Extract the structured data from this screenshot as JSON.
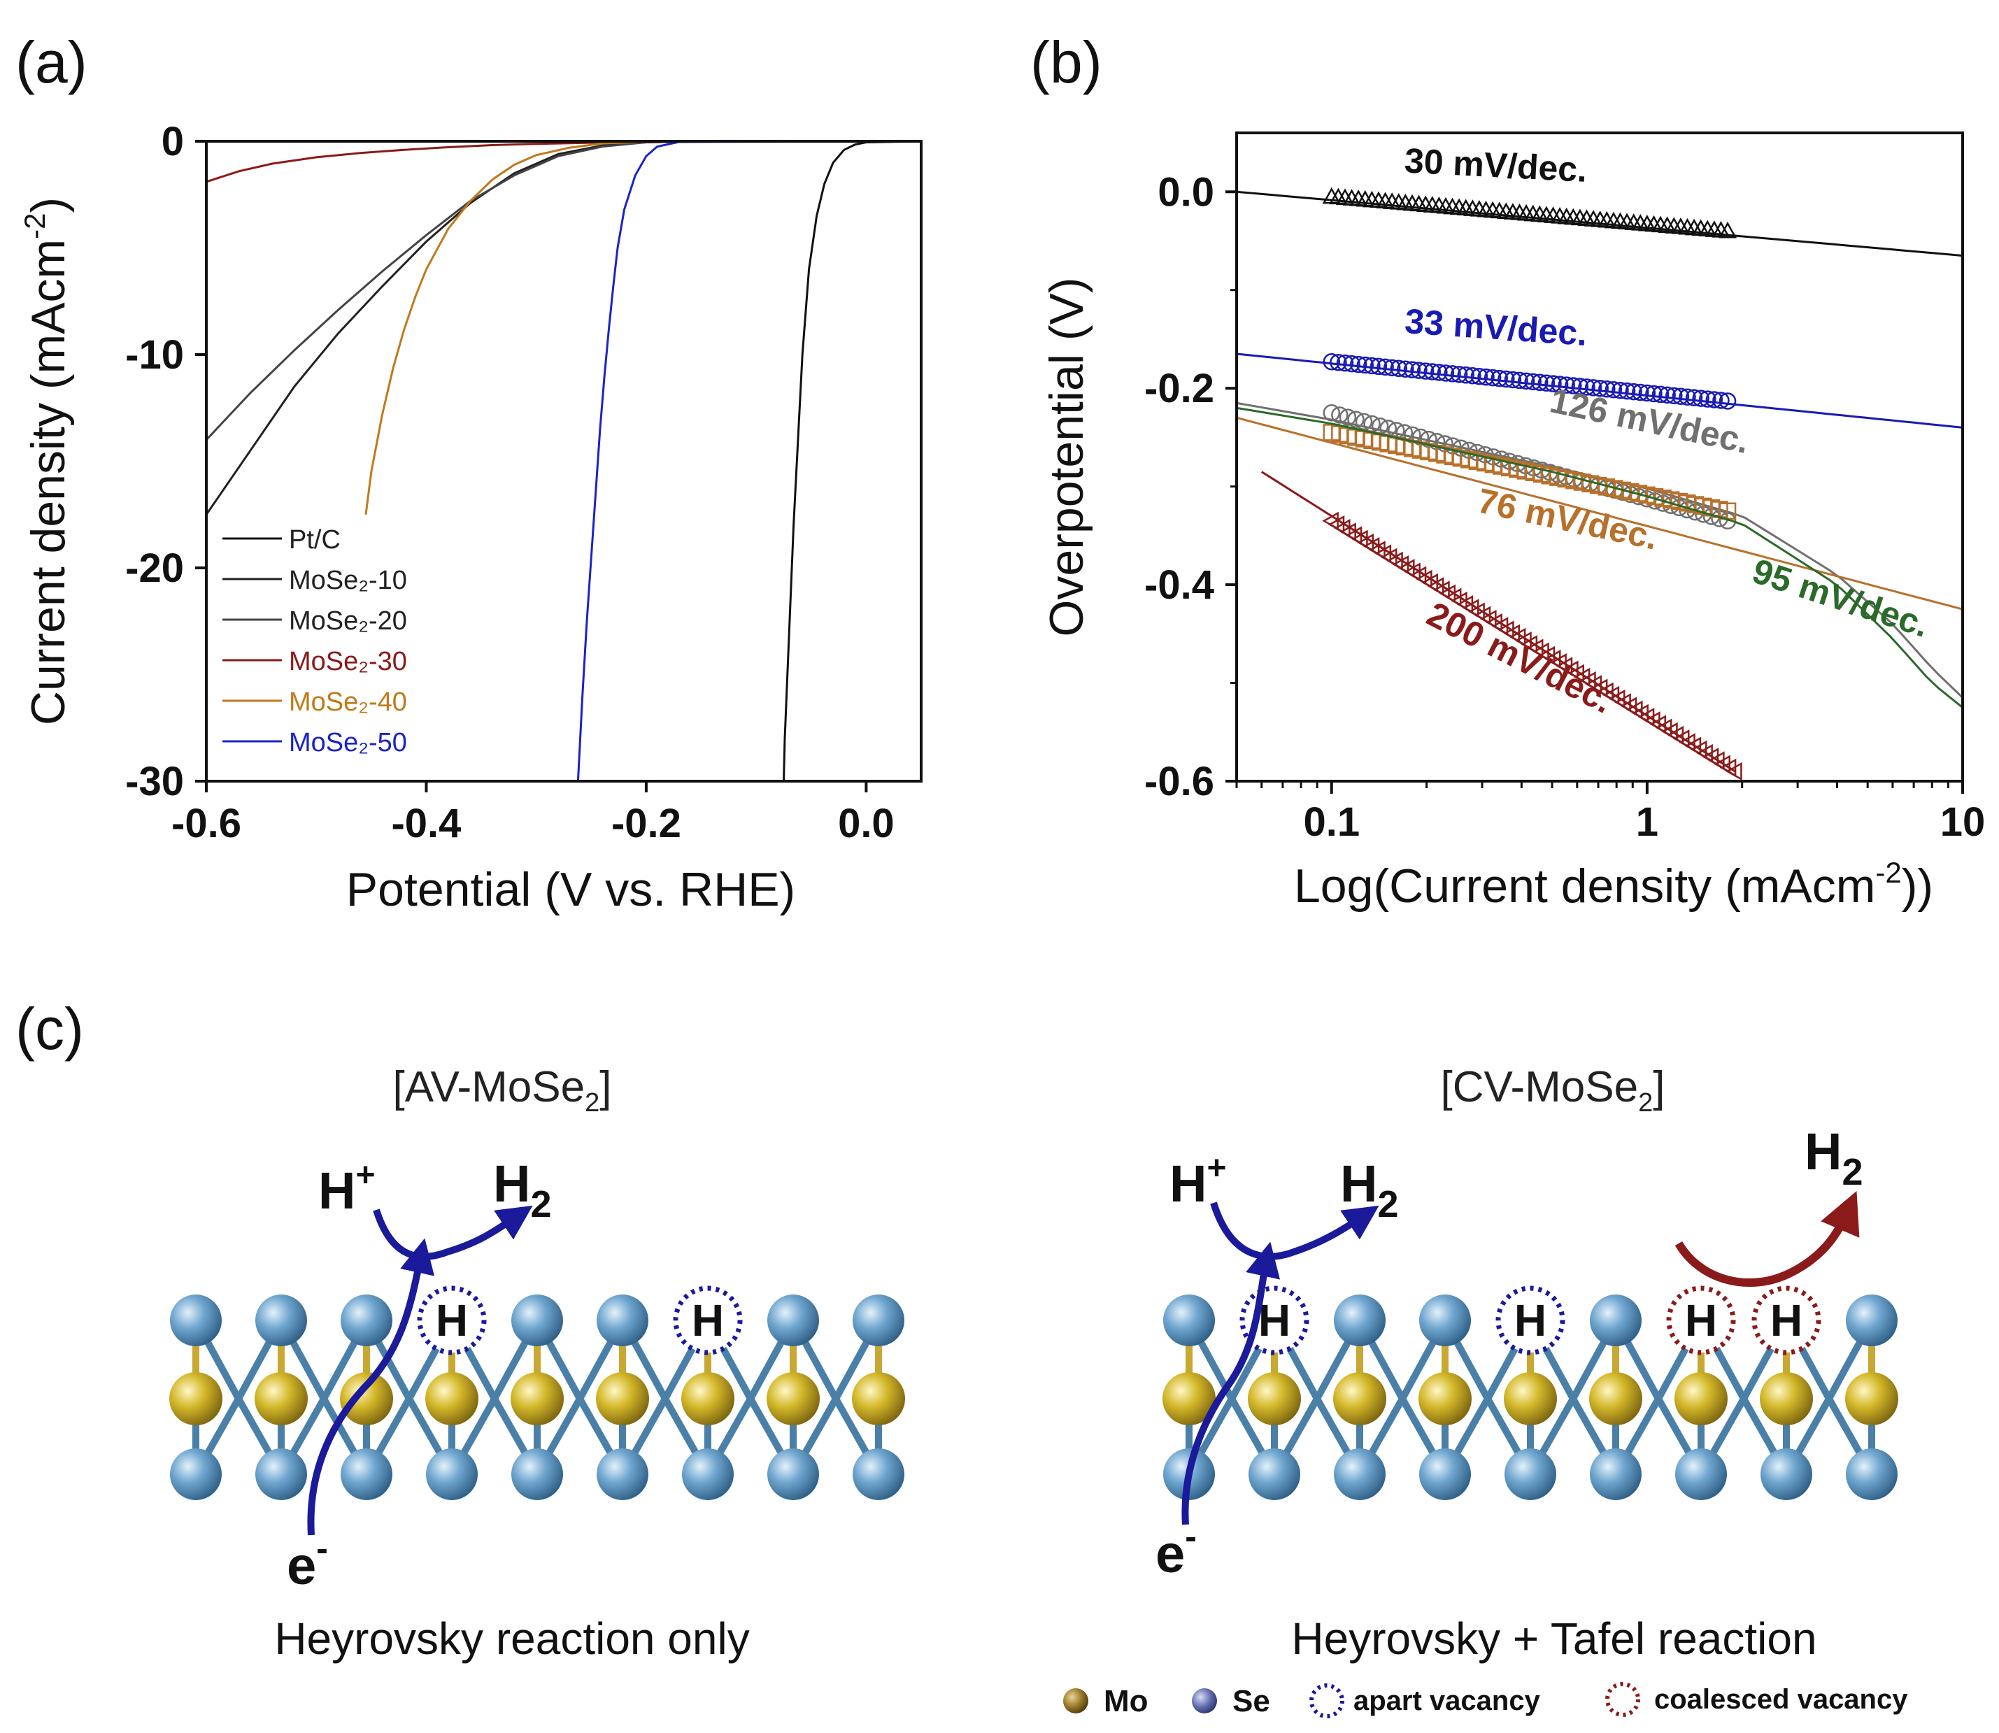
{
  "panel_labels": {
    "a": "(a)",
    "b": "(b)",
    "c": "(c)"
  },
  "colors": {
    "black": "#111111",
    "mose2_10": "#222222",
    "mose2_20": "#444444",
    "mose2_30": "#8b1a1a",
    "mose2_40": "#c07a1a",
    "mose2_50": "#1a23c8",
    "tafel_33": "#1a1ab4",
    "tafel_126": "#707070",
    "tafel_76": "#b8702a",
    "tafel_95": "#2a6a2a",
    "tafel_200": "#8b1a1a",
    "se": "#6fa6cf",
    "mo": "#d4b82a",
    "bond_mo": "#c8a832",
    "bond_se": "#4a7fa8",
    "apart": "#1a1a9a",
    "coalesced": "#8b1a1a"
  },
  "chart_data": [
    {
      "id": "a",
      "type": "line",
      "title": "",
      "xlabel": "Potential (V vs. RHE)",
      "ylabel_main": "Current density (mAcm",
      "ylabel_sup": "-2",
      "ylabel_close": ")",
      "xlim": [
        -0.6,
        0.05
      ],
      "ylim": [
        -30,
        0
      ],
      "xticks": [
        -0.6,
        -0.4,
        -0.2,
        0.0
      ],
      "xtick_labels": [
        "-0.6",
        "-0.4",
        "-0.2",
        "0.0"
      ],
      "yticks": [
        0,
        -10,
        -20,
        -30
      ],
      "ytick_labels": [
        "0",
        "-10",
        "-20",
        "-30"
      ],
      "legend_position": "bottom-left",
      "series": [
        {
          "name": "Pt/C",
          "color_key": "black",
          "x": [
            -0.075,
            -0.074,
            -0.07,
            -0.066,
            -0.062,
            -0.058,
            -0.052,
            -0.045,
            -0.038,
            -0.03,
            -0.02,
            -0.01,
            0.0,
            0.05
          ],
          "y": [
            -30,
            -28,
            -23,
            -18,
            -14,
            -10,
            -6,
            -3.5,
            -2,
            -1,
            -0.4,
            -0.15,
            -0.05,
            0
          ]
        },
        {
          "name": "MoSe2-10",
          "color_key": "mose2_10",
          "x": [
            -0.6,
            -0.56,
            -0.52,
            -0.48,
            -0.44,
            -0.4,
            -0.36,
            -0.32,
            -0.28,
            -0.24,
            -0.2,
            -0.15,
            0.05
          ],
          "y": [
            -17.5,
            -14.5,
            -11.5,
            -9,
            -6.8,
            -4.7,
            -2.9,
            -1.5,
            -0.6,
            -0.2,
            -0.05,
            0,
            0
          ]
        },
        {
          "name": "MoSe2-20",
          "color_key": "mose2_20",
          "x": [
            -0.6,
            -0.56,
            -0.52,
            -0.48,
            -0.44,
            -0.4,
            -0.36,
            -0.32,
            -0.28,
            -0.24,
            -0.2,
            -0.15,
            0.05
          ],
          "y": [
            -14,
            -11.8,
            -9.8,
            -7.9,
            -6.1,
            -4.4,
            -2.8,
            -1.6,
            -0.7,
            -0.25,
            -0.05,
            0,
            0
          ]
        },
        {
          "name": "MoSe2-30",
          "color_key": "mose2_30",
          "x": [
            -0.6,
            -0.57,
            -0.54,
            -0.5,
            -0.46,
            -0.42,
            -0.38,
            -0.34,
            -0.3,
            -0.25,
            -0.2,
            -0.1,
            0.05
          ],
          "y": [
            -1.9,
            -1.4,
            -1.05,
            -0.75,
            -0.55,
            -0.4,
            -0.28,
            -0.18,
            -0.12,
            -0.07,
            -0.03,
            -0.01,
            0
          ]
        },
        {
          "name": "MoSe2-40",
          "color_key": "mose2_40",
          "x": [
            -0.455,
            -0.45,
            -0.44,
            -0.43,
            -0.42,
            -0.41,
            -0.4,
            -0.38,
            -0.36,
            -0.34,
            -0.32,
            -0.3,
            -0.27,
            -0.24,
            -0.2,
            0.05
          ],
          "y": [
            -17.5,
            -15.5,
            -12.8,
            -10.6,
            -8.8,
            -7.3,
            -6.0,
            -4.1,
            -2.8,
            -1.8,
            -1.1,
            -0.65,
            -0.3,
            -0.1,
            -0.02,
            0
          ]
        },
        {
          "name": "MoSe2-50",
          "color_key": "mose2_50",
          "x": [
            -0.262,
            -0.258,
            -0.254,
            -0.25,
            -0.246,
            -0.242,
            -0.238,
            -0.234,
            -0.23,
            -0.226,
            -0.22,
            -0.21,
            -0.2,
            -0.19,
            -0.17,
            0.05
          ],
          "y": [
            -30,
            -26,
            -22.5,
            -19.5,
            -16.5,
            -13.5,
            -11,
            -8.8,
            -6.8,
            -5.0,
            -3.2,
            -1.6,
            -0.7,
            -0.25,
            -0.03,
            0
          ]
        }
      ],
      "legend_entries": [
        {
          "label": "Pt/C",
          "color_key": "black"
        },
        {
          "label": "MoSe₂-10",
          "color_key": "mose2_10"
        },
        {
          "label": "MoSe₂-20",
          "color_key": "mose2_20"
        },
        {
          "label": "MoSe₂-30",
          "color_key": "mose2_30"
        },
        {
          "label": "MoSe₂-40",
          "color_key": "mose2_40"
        },
        {
          "label": "MoSe₂-50",
          "color_key": "mose2_50"
        }
      ]
    },
    {
      "id": "b",
      "type": "scatter",
      "title": "",
      "xlabel_main": "Log(Current density (mAcm",
      "xlabel_sup": "-2",
      "xlabel_close": "))",
      "ylabel": "Overpotential (V)",
      "xscale": "log",
      "xlim": [
        0.05,
        10
      ],
      "ylim": [
        -0.6,
        0.06
      ],
      "xticks": [
        0.1,
        1,
        10
      ],
      "xtick_labels": [
        "0.1",
        "1",
        "10"
      ],
      "yticks": [
        0.0,
        -0.2,
        -0.4,
        -0.6
      ],
      "ytick_labels": [
        "0.0",
        "-0.2",
        "-0.4",
        "-0.6"
      ],
      "series": [
        {
          "name": "30 mV/dec.",
          "marker": "triangle-up",
          "color_key": "black",
          "points": {
            "x_start": 0.1,
            "x_end": 1.8,
            "y_start": -0.005,
            "y_end": -0.04,
            "count": 60
          },
          "fit": {
            "x": [
              0.05,
              10
            ],
            "y": [
              0.0,
              -0.065
            ]
          }
        },
        {
          "name": "33 mV/dec.",
          "marker": "circle",
          "color_key": "tafel_33",
          "points": {
            "x_start": 0.1,
            "x_end": 1.8,
            "y_start": -0.173,
            "y_end": -0.213,
            "count": 60
          },
          "fit": {
            "x": [
              0.05,
              10
            ],
            "y": [
              -0.165,
              -0.24
            ]
          }
        },
        {
          "name": "126 mV/dec.",
          "marker": "circle",
          "color_key": "tafel_126",
          "points": {
            "x_start": 0.1,
            "x_end": 1.8,
            "y_start": -0.225,
            "y_end": -0.335,
            "count": 50
          },
          "fit": {
            "x": [
              0.05,
              0.1,
              0.5,
              1.0,
              2.0,
              4.0,
              6.0,
              8.0,
              10
            ],
            "y": [
              -0.215,
              -0.232,
              -0.28,
              -0.302,
              -0.33,
              -0.39,
              -0.44,
              -0.485,
              -0.515
            ]
          }
        },
        {
          "name": "76 mV/dec.",
          "marker": "square",
          "color_key": "tafel_76",
          "points": {
            "x_start": 0.1,
            "x_end": 1.8,
            "y_start": -0.245,
            "y_end": -0.325,
            "count": 50
          },
          "fit": {
            "x": [
              0.05,
              10
            ],
            "y": [
              -0.23,
              -0.425
            ]
          }
        },
        {
          "name": "95 mV/dec.",
          "marker": "square",
          "color_key": "tafel_95",
          "points": {
            "x_start": 0.1,
            "x_end": 1.8,
            "y_start": -0.24,
            "y_end": -0.33,
            "count": 0
          },
          "fit": {
            "x": [
              0.05,
              0.1,
              0.5,
              1.0,
              2.0,
              4.0,
              6.0,
              8.0,
              10
            ],
            "y": [
              -0.22,
              -0.236,
              -0.285,
              -0.31,
              -0.338,
              -0.4,
              -0.455,
              -0.5,
              -0.525
            ]
          }
        },
        {
          "name": "200 mV/dec.",
          "marker": "triangle-left",
          "color_key": "tafel_200",
          "points": {
            "x_start": 0.1,
            "x_end": 1.9,
            "y_start": -0.335,
            "y_end": -0.59,
            "count": 70
          },
          "fit": {
            "x": [
              0.06,
              1.9
            ],
            "y": [
              -0.285,
              -0.59
            ]
          }
        }
      ],
      "annotations": [
        {
          "text": "30 mV/dec.",
          "color_key": "black",
          "at": [
            0.33,
            0.015
          ],
          "rotate": 3
        },
        {
          "text": "33 mV/dec.",
          "color_key": "tafel_33",
          "at": [
            0.33,
            -0.15
          ],
          "rotate": 4
        },
        {
          "text": "126 mV/dec.",
          "color_key": "tafel_126",
          "at": [
            1.0,
            -0.245
          ],
          "rotate": 12
        },
        {
          "text": "76 mV/dec.",
          "color_key": "tafel_76",
          "at": [
            0.55,
            -0.345
          ],
          "rotate": 12
        },
        {
          "text": "95 mV/dec.",
          "color_key": "tafel_95",
          "at": [
            4.0,
            -0.425
          ],
          "rotate": 18
        },
        {
          "text": "200 mV/dec.",
          "color_key": "tafel_200",
          "at": [
            0.38,
            -0.485
          ],
          "rotate": 27
        }
      ]
    }
  ],
  "schematic": {
    "left": {
      "title_main": "[AV-MoSe",
      "title_sub": "2",
      "title_close": "]",
      "proton": "H",
      "proton_sup": "+",
      "hydrogen": "H",
      "hydrogen_sub": "2",
      "electron": "e",
      "electron_sup": "-",
      "caption": "Heyrovsky reaction only",
      "h_labels": [
        "H",
        "H"
      ]
    },
    "right": {
      "title_main": "[CV-MoSe",
      "title_sub": "2",
      "title_close": "]",
      "proton": "H",
      "proton_sup": "+",
      "hydrogen": "H",
      "hydrogen_sub": "2",
      "hydrogen2": "H",
      "hydrogen2_sub": "2",
      "electron": "e",
      "electron_sup": "-",
      "caption": "Heyrovsky + Tafel reaction",
      "h_labels": [
        "H",
        "H",
        "H",
        "H"
      ]
    },
    "legend": {
      "mo": "Mo",
      "se": "Se",
      "apart": "apart vacancy",
      "coalesced": "coalesced vacancy"
    }
  }
}
